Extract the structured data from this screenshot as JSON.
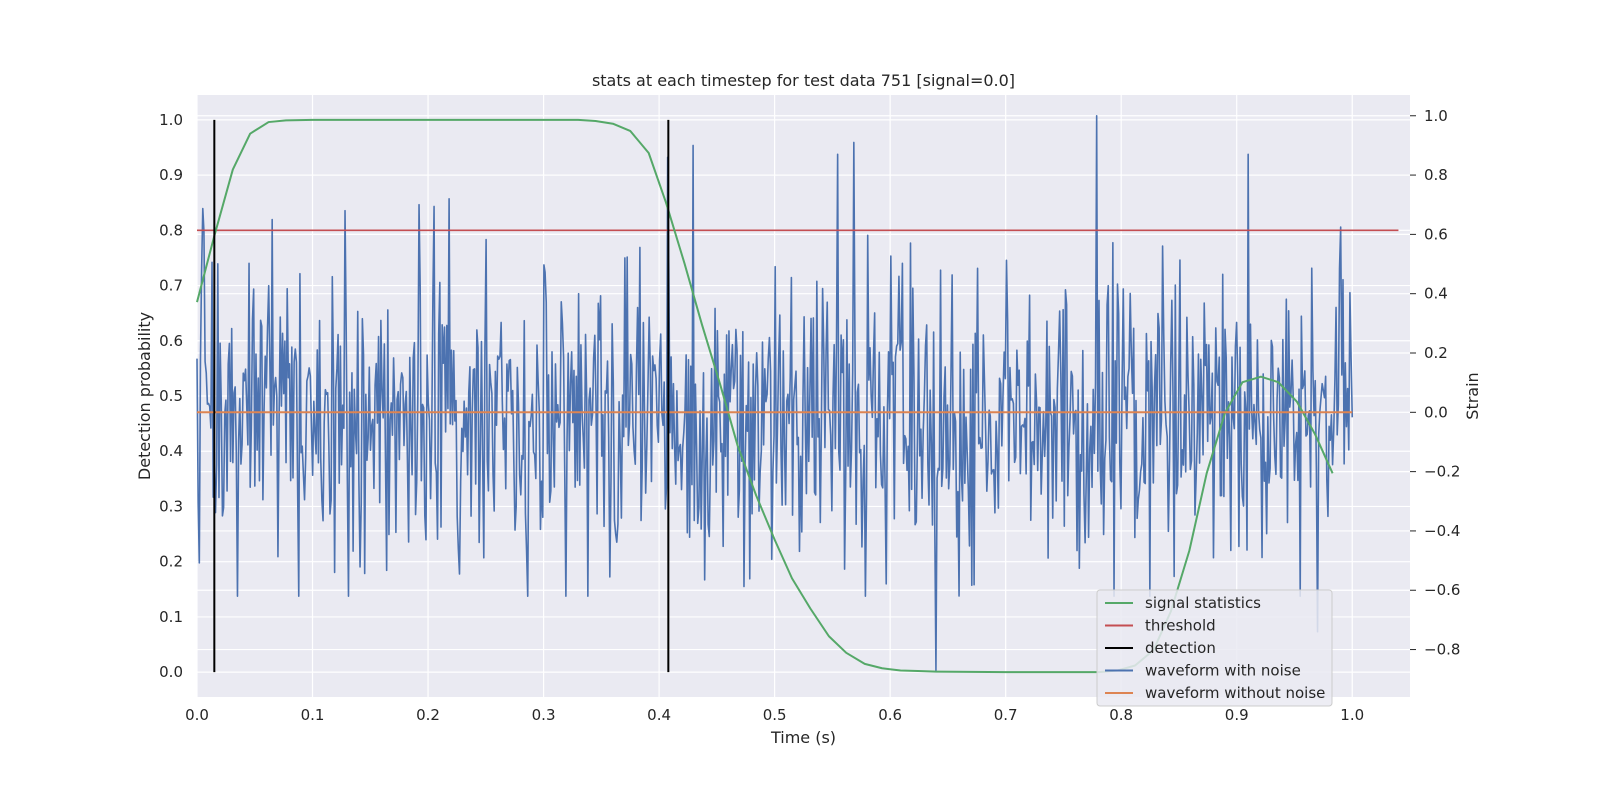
{
  "chart_data": {
    "type": "line",
    "title": "stats at each timestep for test data 751 [signal=0.0]",
    "xlabel": "Time (s)",
    "ylabel": "Detection probability",
    "y2label": "Strain",
    "xlim": [
      0.0,
      1.05
    ],
    "ylim": [
      -0.045,
      1.045
    ],
    "y2lim": [
      -0.96,
      1.07
    ],
    "x_ticks": [
      "0.0",
      "0.1",
      "0.2",
      "0.3",
      "0.4",
      "0.5",
      "0.6",
      "0.7",
      "0.8",
      "0.9",
      "1.0"
    ],
    "y_ticks": [
      "0.0",
      "0.1",
      "0.2",
      "0.3",
      "0.4",
      "0.5",
      "0.6",
      "0.7",
      "0.8",
      "0.9",
      "1.0"
    ],
    "y2_ticks": [
      "−0.8",
      "−0.6",
      "−0.4",
      "−0.2",
      "0.0",
      "0.2",
      "0.4",
      "0.6",
      "0.8",
      "1.0"
    ],
    "grid": true,
    "legend_position": "lower-right",
    "colors": {
      "background": "#eaeaf2",
      "grid": "#ffffff",
      "signal_statistics": "#55a868",
      "threshold": "#c44e52",
      "detection": "#000000",
      "waveform_with_noise": "#4c72b0",
      "waveform_without_noise": "#dd8452"
    },
    "series": [
      {
        "name": "signal statistics",
        "axis": "left",
        "x": [
          0.0,
          0.015,
          0.031,
          0.046,
          0.062,
          0.077,
          0.1,
          0.15,
          0.2,
          0.25,
          0.3,
          0.33,
          0.345,
          0.36,
          0.375,
          0.391,
          0.406,
          0.422,
          0.437,
          0.453,
          0.468,
          0.484,
          0.5,
          0.515,
          0.531,
          0.547,
          0.562,
          0.578,
          0.593,
          0.609,
          0.624,
          0.64,
          0.7,
          0.75,
          0.781,
          0.797,
          0.812,
          0.828,
          0.843,
          0.859,
          0.874,
          0.89,
          0.905,
          0.921,
          0.936,
          0.952,
          0.968,
          0.983
        ],
        "y": [
          0.67,
          0.79,
          0.91,
          0.975,
          0.996,
          0.999,
          1.0,
          1.0,
          1.0,
          1.0,
          1.0,
          1.0,
          0.998,
          0.993,
          0.98,
          0.94,
          0.85,
          0.74,
          0.63,
          0.52,
          0.41,
          0.32,
          0.24,
          0.17,
          0.115,
          0.065,
          0.035,
          0.015,
          0.007,
          0.003,
          0.002,
          0.001,
          0.0,
          0.0,
          0.0,
          0.003,
          0.012,
          0.04,
          0.11,
          0.22,
          0.36,
          0.47,
          0.525,
          0.535,
          0.525,
          0.49,
          0.43,
          0.36
        ]
      },
      {
        "name": "threshold",
        "axis": "left",
        "x": [
          0.0,
          1.04
        ],
        "y": [
          0.8,
          0.8
        ]
      },
      {
        "name": "detection",
        "axis": "left",
        "segments": [
          {
            "x": 0.015,
            "y": [
              0.0,
              1.0
            ]
          },
          {
            "x": 0.408,
            "y": [
              0.0,
              1.0
            ]
          }
        ]
      },
      {
        "name": "waveform with noise",
        "axis": "right",
        "x_range": [
          0.0,
          1.0
        ],
        "sample_count": 1000,
        "y_range": [
          -0.88,
          1.0
        ],
        "y_values_note_free": true,
        "notable_points": [
          {
            "x": 0.065,
            "y": 0.65
          },
          {
            "x": 0.128,
            "y": 0.68
          },
          {
            "x": 0.192,
            "y": 0.7
          },
          {
            "x": 0.33,
            "y": 0.4
          },
          {
            "x": 0.407,
            "y": 0.86
          },
          {
            "x": 0.429,
            "y": 0.9
          },
          {
            "x": 0.555,
            "y": 0.87
          },
          {
            "x": 0.569,
            "y": 0.91
          },
          {
            "x": 0.64,
            "y": -0.87
          },
          {
            "x": 0.779,
            "y": 1.0
          },
          {
            "x": 0.91,
            "y": 0.87
          },
          {
            "x": 0.97,
            "y": -0.74
          }
        ]
      },
      {
        "name": "waveform without noise",
        "axis": "right",
        "x": [
          0.0,
          1.0
        ],
        "y": [
          0.0,
          0.0
        ]
      }
    ]
  }
}
